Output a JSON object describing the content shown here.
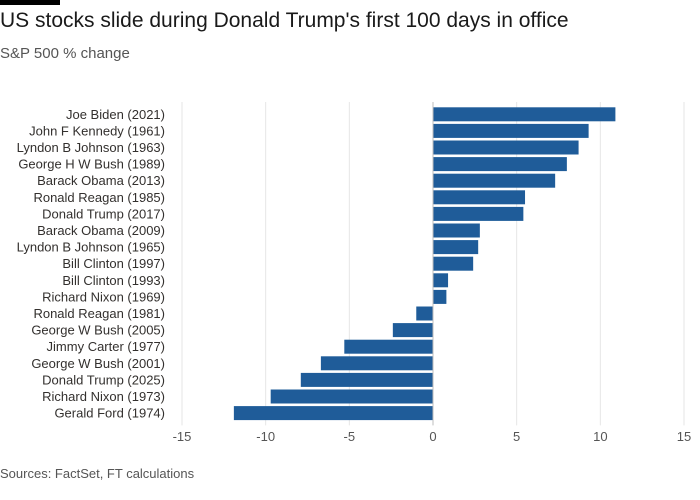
{
  "title": "US stocks slide during Donald Trump's first 100 days in office",
  "subtitle": "S&P 500 % change",
  "source": "Sources: FactSet, FT calculations",
  "colors": {
    "bar": "#1f5c99",
    "grid": "#e6e6e6",
    "zero": "#bdbdbd"
  },
  "chart_data": {
    "type": "bar",
    "orientation": "horizontal",
    "categories": [
      "Joe Biden (2021)",
      "John F Kennedy (1961)",
      "Lyndon B Johnson (1963)",
      "George H W Bush (1989)",
      "Barack Obama (2013)",
      "Ronald Reagan (1985)",
      "Donald Trump (2017)",
      "Barack Obama (2009)",
      "Lyndon B Johnson (1965)",
      "Bill Clinton (1997)",
      "Bill Clinton (1993)",
      "Richard Nixon (1969)",
      "Ronald Reagan (1981)",
      "George W Bush (2005)",
      "Jimmy Carter (1977)",
      "George W Bush (2001)",
      "Donald Trump (2025)",
      "Richard Nixon (1973)",
      "Gerald Ford (1974)"
    ],
    "values": [
      10.9,
      9.3,
      8.7,
      8.0,
      7.3,
      5.5,
      5.4,
      2.8,
      2.7,
      2.4,
      0.9,
      0.8,
      -1.0,
      -2.4,
      -5.3,
      -6.7,
      -7.9,
      -9.7,
      -11.9
    ],
    "xlim": [
      -15,
      15
    ],
    "xticks": [
      -15,
      -10,
      -5,
      0,
      5,
      10,
      15
    ],
    "xlabel": "",
    "ylabel": "",
    "grid": true,
    "legend": "none"
  }
}
